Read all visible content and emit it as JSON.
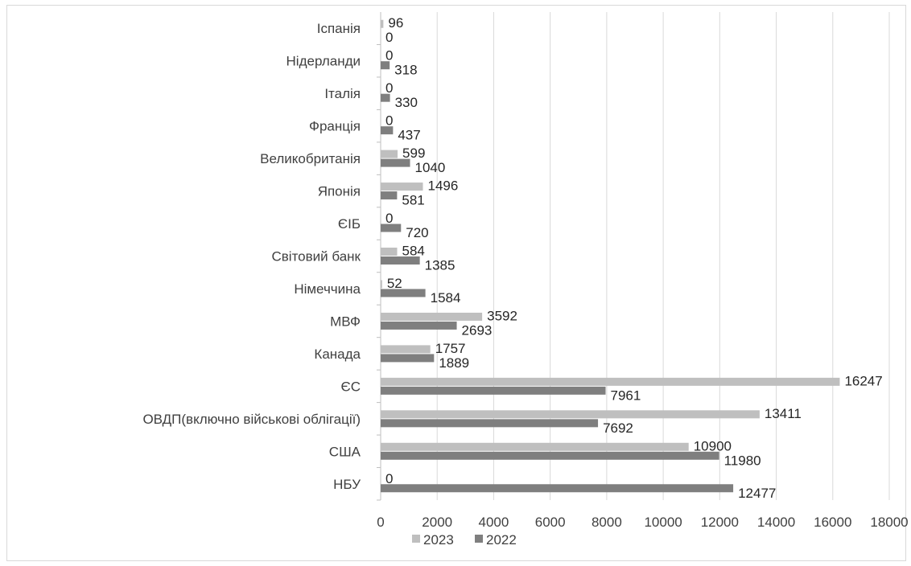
{
  "chart_data": {
    "type": "bar",
    "orientation": "horizontal",
    "categories": [
      "НБУ",
      "США",
      "ОВДП(включно військові облігації)",
      "ЄС",
      "Канада",
      "МВФ",
      "Німеччина",
      "Світовий банк",
      "ЄІБ",
      "Японія",
      "Великобританія",
      "Франція",
      "Італія",
      "Нідерланди",
      "Іспанія"
    ],
    "series": [
      {
        "name": "2023",
        "color": "#bfbfbf",
        "values": [
          0,
          10900,
          13411,
          16247,
          1757,
          3592,
          52,
          584,
          0,
          1496,
          599,
          0,
          0,
          0,
          96
        ],
        "labels": [
          "0",
          "10900",
          "13411",
          "16247",
          "1757",
          "3592",
          "52",
          "584",
          "0",
          "1496",
          "599",
          "0",
          "0",
          "0",
          "96"
        ]
      },
      {
        "name": "2022",
        "color": "#7f7f7f",
        "values": [
          12477,
          11980,
          7692,
          7961,
          1889,
          2693,
          1584,
          1385,
          720,
          581,
          1040,
          437,
          330,
          318,
          0
        ],
        "labels": [
          "12477",
          "11980",
          "7692",
          "7961",
          "1889",
          "2693",
          "1584",
          "1385",
          "720",
          "581",
          "1040",
          "437",
          "330",
          "318",
          "0"
        ]
      }
    ],
    "x_ticks": [
      "0",
      "2000",
      "4000",
      "6000",
      "8000",
      "10000",
      "12000",
      "14000",
      "16000",
      "18000"
    ],
    "xlim": [
      0,
      18000
    ],
    "grid": "vertical",
    "legend_position": "bottom",
    "title": "",
    "xlabel": "",
    "ylabel": ""
  }
}
